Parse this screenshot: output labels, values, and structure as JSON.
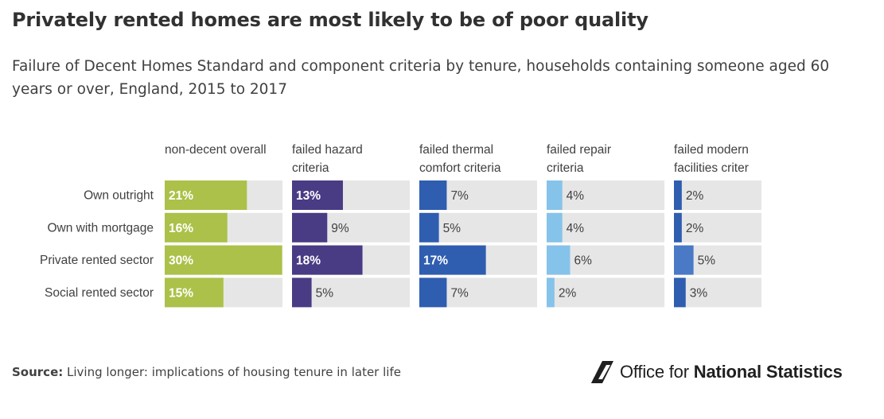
{
  "header": {
    "title": "Privately rented homes are most likely to be of poor quality",
    "subtitle": "Failure of Decent Homes Standard and component criteria by tenure, households containing someone aged 60 years or over, England, 2015 to 2017"
  },
  "chart_data": {
    "type": "bar",
    "orientation": "horizontal",
    "layout": "small-multiples",
    "categories": [
      "Own outright",
      "Own with mortgage",
      "Private rented sector",
      "Social rented sector"
    ],
    "panels": [
      {
        "title_lines": [
          "non-decent overall"
        ],
        "values": [
          21,
          16,
          30,
          15
        ],
        "labels": [
          "21%",
          "16%",
          "30%",
          "15%"
        ],
        "color": "#abc149",
        "label_inside": [
          true,
          true,
          true,
          true
        ]
      },
      {
        "title_lines": [
          "failed hazard",
          "criteria"
        ],
        "values": [
          13,
          9,
          18,
          5
        ],
        "labels": [
          "13%",
          "9%",
          "18%",
          "5%"
        ],
        "color": "#4a3b85",
        "label_inside": [
          true,
          false,
          true,
          false
        ]
      },
      {
        "title_lines": [
          "failed thermal",
          "comfort criteria"
        ],
        "values": [
          7,
          5,
          17,
          7
        ],
        "labels": [
          "7%",
          "5%",
          "17%",
          "7%"
        ],
        "colors": [
          "#2f5db0",
          "#2f5db0",
          "#2f5db0",
          "#2f5db0"
        ],
        "label_inside": [
          false,
          false,
          true,
          false
        ]
      },
      {
        "title_lines": [
          "failed repair",
          "criteria"
        ],
        "values": [
          4,
          4,
          6,
          2
        ],
        "labels": [
          "4%",
          "4%",
          "6%",
          "2%"
        ],
        "colors": [
          "#86c3ea",
          "#86c3ea",
          "#86c3ea",
          "#86c3ea"
        ],
        "label_inside": [
          false,
          false,
          false,
          false
        ]
      },
      {
        "title_lines": [
          "failed modern",
          "facilities criter"
        ],
        "values": [
          2,
          2,
          5,
          3
        ],
        "labels": [
          "2%",
          "2%",
          "5%",
          "3%"
        ],
        "colors": [
          "#2f5db0",
          "#2f5db0",
          "#4a79c6",
          "#2f5db0"
        ],
        "label_inside": [
          false,
          false,
          false,
          false
        ]
      }
    ],
    "xlim": [
      0,
      35
    ],
    "background_track_color": "#e6e6e7"
  },
  "footer": {
    "source_label": "Source:",
    "source_text": "Living longer: implications of housing tenure in later life",
    "logo_text_light": "Office for ",
    "logo_text_bold": "National Statistics"
  }
}
